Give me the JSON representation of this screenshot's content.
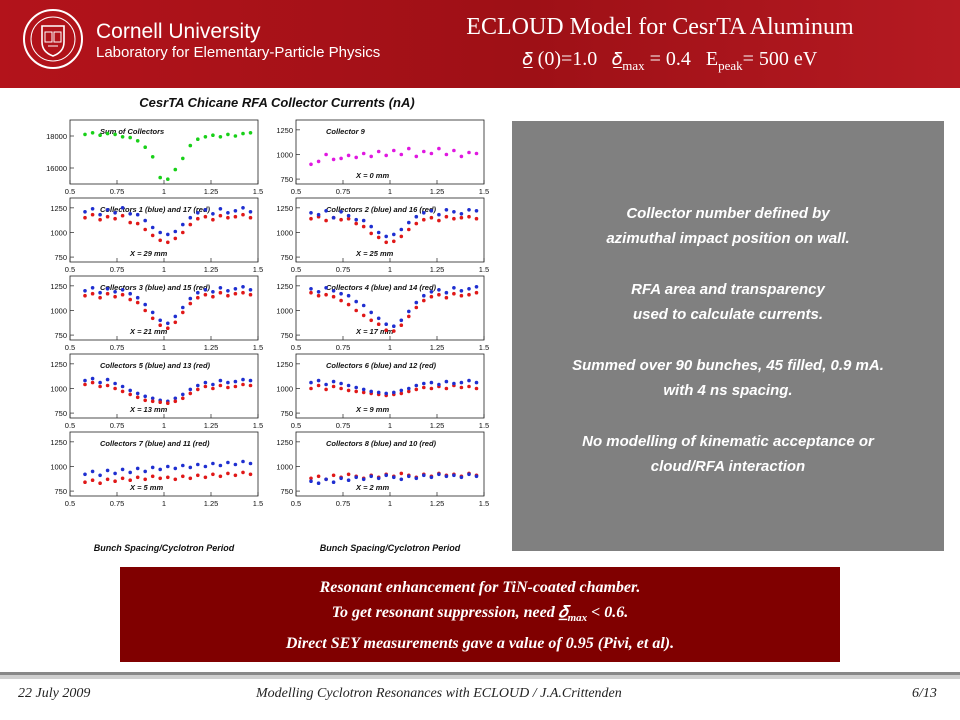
{
  "header": {
    "university": "Cornell University",
    "laboratory": "Laboratory for Elementary-Particle Physics",
    "title": "ECLOUD Model for CesrTA Aluminum",
    "subtitle": {
      "part1": "(0)=1.0",
      "max_sub": "max",
      "part2": "= 0.4",
      "e_letter": "E",
      "peak_sub": "peak",
      "part3": "= 500 eV"
    }
  },
  "plots": {
    "title": "CesrTA Chicane RFA Collector Currents (nA)",
    "xlabel": "Bunch Spacing/Cyclotron Period",
    "x_ticks": [
      "0.5",
      "0.75",
      "1",
      "1.25",
      "1.5"
    ],
    "panels": [
      {
        "label": "Sum of Collectors",
        "xpos": "",
        "yticks": [
          "18000",
          "16000"
        ]
      },
      {
        "label": "Collector 9",
        "xpos": "X = 0 mm",
        "yticks": [
          "1250",
          "1000",
          "750"
        ]
      },
      {
        "label": "Collectors 1 (blue) and 17 (red)",
        "xpos": "X = 29 mm",
        "yticks": [
          "1250",
          "1000",
          "750"
        ]
      },
      {
        "label": "Collectors 2 (blue) and 16 (red)",
        "xpos": "X = 25 mm",
        "yticks": [
          "1250",
          "1000",
          "750"
        ]
      },
      {
        "label": "Collectors 3 (blue) and 15 (red)",
        "xpos": "X = 21 mm",
        "yticks": [
          "1250",
          "1000",
          "750"
        ]
      },
      {
        "label": "Collectors 4 (blue) and 14 (red)",
        "xpos": "X = 17 mm",
        "yticks": [
          "1250",
          "1000",
          "750"
        ]
      },
      {
        "label": "Collectors 5 (blue) and 13 (red)",
        "xpos": "X = 13 mm",
        "yticks": [
          "1250",
          "1000",
          "750"
        ]
      },
      {
        "label": "Collectors 6 (blue) and 12 (red)",
        "xpos": "X = 9 mm",
        "yticks": [
          "1250",
          "1000",
          "750"
        ]
      },
      {
        "label": "Collectors 7 (blue) and 11 (red)",
        "xpos": "X = 5 mm",
        "yticks": [
          "1250",
          "1000",
          "750"
        ]
      },
      {
        "label": "Collectors 8 (blue) and 10 (red)",
        "xpos": "X = 2 mm",
        "yticks": [
          "1250",
          "1000",
          "750"
        ]
      }
    ]
  },
  "chart_data": {
    "type": "scatter",
    "title": "CesrTA Chicane RFA Collector Currents (nA)",
    "xlabel": "Bunch Spacing/Cyclotron Period",
    "xlim": [
      0.5,
      1.5
    ],
    "colors": {
      "blue": "#1f2fd0",
      "red": "#e01818",
      "green": "#18d018",
      "magenta": "#e018e0"
    },
    "x": [
      0.58,
      0.62,
      0.66,
      0.7,
      0.74,
      0.78,
      0.82,
      0.86,
      0.9,
      0.94,
      0.98,
      1.02,
      1.06,
      1.1,
      1.14,
      1.18,
      1.22,
      1.26,
      1.3,
      1.34,
      1.38,
      1.42,
      1.46
    ],
    "panels": [
      {
        "name": "Sum of Collectors",
        "ylim": [
          15000,
          19000
        ],
        "series": [
          {
            "color": "green",
            "values": [
              18100,
              18200,
              18050,
              18150,
              18100,
              17950,
              17900,
              17700,
              17300,
              16700,
              15400,
              15300,
              15900,
              16600,
              17400,
              17800,
              17950,
              18050,
              17950,
              18100,
              18000,
              18150,
              18200
            ]
          }
        ]
      },
      {
        "name": "Collector 9",
        "ylim": [
          700,
          1350
        ],
        "series": [
          {
            "color": "magenta",
            "values": [
              900,
              930,
              1000,
              950,
              960,
              990,
              970,
              1010,
              980,
              1030,
              990,
              1040,
              1000,
              1060,
              980,
              1030,
              1010,
              1060,
              1000,
              1040,
              980,
              1020,
              1010
            ]
          }
        ]
      },
      {
        "name": "Collectors 1 (blue) and 17 (red)",
        "ylim": [
          700,
          1350
        ],
        "series": [
          {
            "color": "blue",
            "values": [
              1210,
              1240,
              1180,
              1230,
              1200,
              1250,
              1190,
              1180,
              1120,
              1050,
              1000,
              980,
              1010,
              1080,
              1150,
              1200,
              1230,
              1190,
              1240,
              1200,
              1220,
              1250,
              1210
            ]
          },
          {
            "color": "red",
            "values": [
              1150,
              1180,
              1130,
              1160,
              1140,
              1170,
              1100,
              1090,
              1030,
              970,
              920,
              900,
              940,
              1000,
              1080,
              1140,
              1160,
              1130,
              1170,
              1150,
              1160,
              1180,
              1150
            ]
          }
        ]
      },
      {
        "name": "Collectors 2 (blue) and 16 (red)",
        "ylim": [
          700,
          1350
        ],
        "series": [
          {
            "color": "red",
            "values": [
              1140,
              1160,
              1120,
              1150,
              1130,
              1140,
              1090,
              1060,
              990,
              950,
              900,
              910,
              960,
              1030,
              1090,
              1130,
              1150,
              1120,
              1160,
              1140,
              1150,
              1160,
              1140
            ]
          },
          {
            "color": "blue",
            "values": [
              1200,
              1180,
              1220,
              1150,
              1210,
              1170,
              1130,
              1120,
              1060,
              1000,
              960,
              980,
              1030,
              1100,
              1160,
              1200,
              1220,
              1180,
              1230,
              1210,
              1190,
              1230,
              1220
            ]
          }
        ]
      },
      {
        "name": "Collectors 3 (blue) and 15 (red)",
        "ylim": [
          700,
          1350
        ],
        "series": [
          {
            "color": "blue",
            "values": [
              1200,
              1230,
              1180,
              1220,
              1190,
              1210,
              1170,
              1130,
              1060,
              980,
              900,
              870,
              940,
              1030,
              1120,
              1180,
              1210,
              1190,
              1230,
              1200,
              1220,
              1240,
              1210
            ]
          },
          {
            "color": "red",
            "values": [
              1150,
              1170,
              1130,
              1170,
              1140,
              1160,
              1110,
              1080,
              1000,
              920,
              850,
              820,
              880,
              980,
              1070,
              1130,
              1160,
              1140,
              1180,
              1150,
              1170,
              1180,
              1160
            ]
          }
        ]
      },
      {
        "name": "Collectors 4 (blue) and 14 (red)",
        "ylim": [
          700,
          1350
        ],
        "series": [
          {
            "color": "blue",
            "values": [
              1220,
              1190,
              1230,
              1200,
              1170,
              1150,
              1090,
              1050,
              980,
              920,
              860,
              840,
              900,
              990,
              1080,
              1150,
              1190,
              1210,
              1180,
              1230,
              1200,
              1220,
              1240
            ]
          },
          {
            "color": "red",
            "values": [
              1180,
              1150,
              1160,
              1140,
              1100,
              1060,
              1000,
              950,
              900,
              860,
              800,
              790,
              850,
              940,
              1030,
              1100,
              1140,
              1160,
              1130,
              1170,
              1150,
              1160,
              1180
            ]
          }
        ]
      },
      {
        "name": "Collectors 5 (blue) and 13 (red)",
        "ylim": [
          700,
          1350
        ],
        "series": [
          {
            "color": "blue",
            "values": [
              1080,
              1100,
              1060,
              1090,
              1050,
              1020,
              980,
              950,
              920,
              900,
              880,
              870,
              900,
              940,
              990,
              1030,
              1060,
              1040,
              1080,
              1060,
              1070,
              1090,
              1080
            ]
          },
          {
            "color": "red",
            "values": [
              1040,
              1060,
              1020,
              1030,
              1000,
              970,
              940,
              910,
              880,
              870,
              860,
              850,
              870,
              900,
              950,
              990,
              1020,
              1000,
              1030,
              1010,
              1020,
              1040,
              1030
            ]
          }
        ]
      },
      {
        "name": "Collectors 6 (blue) and 12 (red)",
        "ylim": [
          700,
          1350
        ],
        "series": [
          {
            "color": "red",
            "values": [
              1000,
              1030,
              990,
              1020,
              1000,
              980,
              970,
              960,
              950,
              940,
              930,
              940,
              950,
              970,
              990,
              1010,
              1000,
              1020,
              1000,
              1030,
              1010,
              1020,
              1000
            ]
          },
          {
            "color": "blue",
            "values": [
              1060,
              1080,
              1040,
              1070,
              1050,
              1030,
              1010,
              990,
              970,
              960,
              950,
              960,
              980,
              1000,
              1030,
              1050,
              1060,
              1040,
              1070,
              1050,
              1060,
              1080,
              1060
            ]
          }
        ]
      },
      {
        "name": "Collectors 7 (blue) and 11 (red)",
        "ylim": [
          700,
          1350
        ],
        "series": [
          {
            "color": "red",
            "values": [
              840,
              860,
              830,
              870,
              850,
              880,
              860,
              890,
              870,
              900,
              880,
              890,
              870,
              900,
              880,
              910,
              890,
              920,
              900,
              930,
              910,
              940,
              920
            ]
          },
          {
            "color": "blue",
            "values": [
              920,
              950,
              910,
              960,
              930,
              970,
              940,
              980,
              950,
              990,
              970,
              1000,
              980,
              1010,
              990,
              1020,
              1000,
              1030,
              1010,
              1040,
              1020,
              1050,
              1030
            ]
          }
        ]
      },
      {
        "name": "Collectors 8 (blue) and 10 (red)",
        "ylim": [
          700,
          1350
        ],
        "series": [
          {
            "color": "red",
            "values": [
              880,
              900,
              870,
              910,
              890,
              920,
              900,
              880,
              910,
              890,
              920,
              900,
              930,
              910,
              890,
              920,
              900,
              930,
              910,
              920,
              900,
              930,
              910
            ]
          },
          {
            "color": "blue",
            "values": [
              850,
              830,
              870,
              840,
              880,
              860,
              890,
              870,
              900,
              880,
              910,
              890,
              870,
              900,
              880,
              910,
              890,
              920,
              900,
              910,
              890,
              920,
              900
            ]
          }
        ]
      }
    ]
  },
  "info": {
    "lines": [
      [
        "Collector number defined by",
        "azimuthal impact position on wall."
      ],
      [
        "RFA area and transparency",
        "used to calculate currents."
      ],
      [
        "Summed over 90 bunches, 45 filled, 0.9 mA.",
        "with 4 ns spacing."
      ],
      [
        "No modelling of kinematic acceptance or",
        "cloud/RFA interaction"
      ]
    ]
  },
  "conclusion": {
    "line1": "Resonant enhancement for TiN-coated  chamber.",
    "line2a": "To get resonant suppression, need",
    "line2_sub": "max",
    "line2b": "< 0.6.",
    "line3": "Direct SEY measurements gave a value of 0.95 (Pivi, et al)."
  },
  "footer": {
    "date": "22 July 2009",
    "title": "Modelling Cyclotron Resonances with ECLOUD / J.A.Crittenden",
    "page": "6/13"
  }
}
